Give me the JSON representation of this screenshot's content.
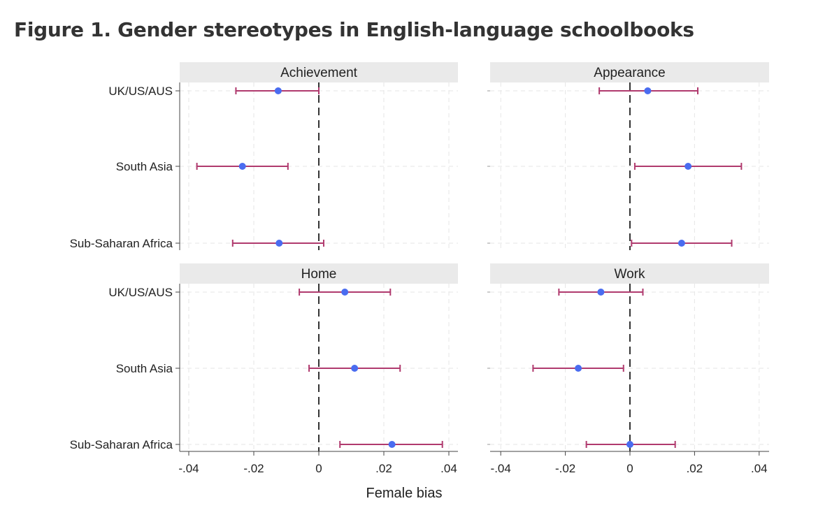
{
  "title": "Figure 1. Gender stereotypes in English-language schoolbooks",
  "chart_data": {
    "type": "scatter",
    "subtype": "coefficient plot with confidence intervals",
    "xlabel": "Female bias",
    "xlim": [
      -0.042,
      0.042
    ],
    "xticks": [
      -0.04,
      -0.02,
      0,
      0.02,
      0.04
    ],
    "xtick_labels": [
      "-.04",
      "-.02",
      "0",
      ".02",
      ".04"
    ],
    "categories": [
      "UK/US/AUS",
      "South Asia",
      "Sub-Saharan Africa"
    ],
    "reference_line": 0,
    "grid": true,
    "colors": {
      "point": "#4a6cf0",
      "interval": "#b03a6e",
      "strip": "#eaeaea",
      "reference": "#333333"
    },
    "panels": [
      {
        "name": "Achievement",
        "points": [
          {
            "region": "UK/US/AUS",
            "estimate": -0.0125,
            "ci": [
              -0.0255,
              0.0
            ]
          },
          {
            "region": "South Asia",
            "estimate": -0.0235,
            "ci": [
              -0.0375,
              -0.0095
            ]
          },
          {
            "region": "Sub-Saharan Africa",
            "estimate": -0.0122,
            "ci": [
              -0.0265,
              0.0015
            ]
          }
        ]
      },
      {
        "name": "Appearance",
        "points": [
          {
            "region": "UK/US/AUS",
            "estimate": 0.0055,
            "ci": [
              -0.0095,
              0.021
            ]
          },
          {
            "region": "South Asia",
            "estimate": 0.018,
            "ci": [
              0.0015,
              0.0345
            ]
          },
          {
            "region": "Sub-Saharan Africa",
            "estimate": 0.016,
            "ci": [
              0.0005,
              0.0315
            ]
          }
        ]
      },
      {
        "name": "Home",
        "points": [
          {
            "region": "UK/US/AUS",
            "estimate": 0.008,
            "ci": [
              -0.006,
              0.022
            ]
          },
          {
            "region": "South Asia",
            "estimate": 0.011,
            "ci": [
              -0.003,
              0.025
            ]
          },
          {
            "region": "Sub-Saharan Africa",
            "estimate": 0.0225,
            "ci": [
              0.0065,
              0.038
            ]
          }
        ]
      },
      {
        "name": "Work",
        "points": [
          {
            "region": "UK/US/AUS",
            "estimate": -0.009,
            "ci": [
              -0.022,
              0.004
            ]
          },
          {
            "region": "South Asia",
            "estimate": -0.016,
            "ci": [
              -0.03,
              -0.002
            ]
          },
          {
            "region": "Sub-Saharan Africa",
            "estimate": 0.0,
            "ci": [
              -0.0135,
              0.014
            ]
          }
        ]
      }
    ]
  }
}
